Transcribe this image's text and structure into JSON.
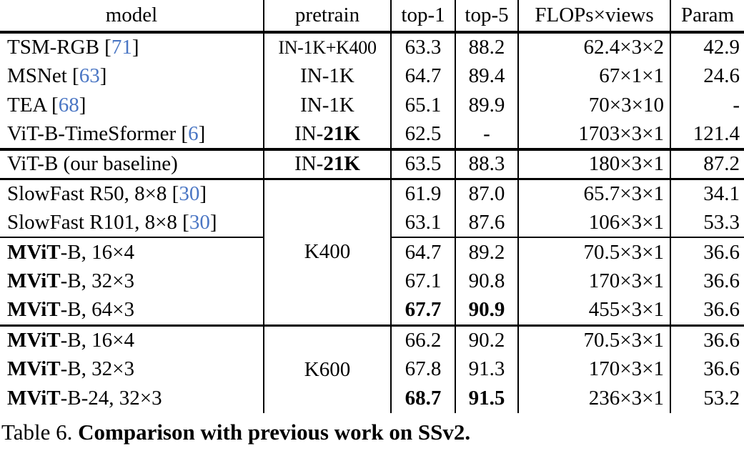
{
  "colors": {
    "ref_link": "#4a76c4",
    "text": "#000000",
    "background": "#ffffff"
  },
  "header": {
    "cells": [
      "model",
      "pretrain",
      "top-1",
      "top-5",
      "FLOPs×views",
      "Param"
    ]
  },
  "table_rows": [
    {
      "model": [
        {
          "t": "TSM-RGB ["
        },
        {
          "t": "71",
          "ref": true
        },
        {
          "t": "]"
        }
      ],
      "pretrain": {
        "rowspan": 1,
        "fit": true,
        "segs": [
          {
            "t": "IN-1K+K400"
          }
        ]
      },
      "top1": {
        "t": "63.3"
      },
      "top5": {
        "t": "88.2"
      },
      "flops": "62.4×3×2",
      "param": "42.9",
      "border": null
    },
    {
      "model": [
        {
          "t": "MSNet ["
        },
        {
          "t": "63",
          "ref": true
        },
        {
          "t": "]"
        }
      ],
      "pretrain": {
        "rowspan": 1,
        "segs": [
          {
            "t": "IN-1K"
          }
        ]
      },
      "top1": {
        "t": "64.7"
      },
      "top5": {
        "t": "89.4"
      },
      "flops": "67×1×1",
      "param": "24.6",
      "border": null
    },
    {
      "model": [
        {
          "t": "TEA ["
        },
        {
          "t": "68",
          "ref": true
        },
        {
          "t": "]"
        }
      ],
      "pretrain": {
        "rowspan": 1,
        "segs": [
          {
            "t": "IN-1K"
          }
        ]
      },
      "top1": {
        "t": "65.1"
      },
      "top5": {
        "t": "89.9"
      },
      "flops": "70×3×10",
      "param": "-",
      "border": null
    },
    {
      "model": [
        {
          "t": "ViT-B-TimeSformer ["
        },
        {
          "t": "6",
          "ref": true
        },
        {
          "t": "]"
        }
      ],
      "pretrain": {
        "rowspan": 1,
        "segs": [
          {
            "t": "IN-"
          },
          {
            "t": "21K",
            "b": true
          }
        ]
      },
      "top1": {
        "t": "62.5"
      },
      "top5": {
        "t": "-"
      },
      "flops": "1703×3×1",
      "param": "121.4",
      "border": null
    },
    {
      "model": [
        {
          "t": "ViT-B (our baseline)"
        }
      ],
      "pretrain": {
        "rowspan": 1,
        "segs": [
          {
            "t": "IN-"
          },
          {
            "t": "21K",
            "b": true
          }
        ]
      },
      "top1": {
        "t": "63.5"
      },
      "top5": {
        "t": "88.3"
      },
      "flops": "180×3×1",
      "param": "87.2",
      "border": "thick"
    },
    {
      "model": [
        {
          "t": "SlowFast R50, 8×8 ["
        },
        {
          "t": "30",
          "ref": true
        },
        {
          "t": "]"
        }
      ],
      "pretrain": {
        "rowspan": 5,
        "segs": [
          {
            "t": "K400"
          }
        ]
      },
      "top1": {
        "t": "61.9"
      },
      "top5": {
        "t": "87.0"
      },
      "flops": "65.7×3×1",
      "param": "34.1",
      "border": "medium"
    },
    {
      "model": [
        {
          "t": "SlowFast R101, 8×8 ["
        },
        {
          "t": "30",
          "ref": true
        },
        {
          "t": "]"
        }
      ],
      "pretrain": null,
      "top1": {
        "t": "63.1"
      },
      "top5": {
        "t": "87.6"
      },
      "flops": "106×3×1",
      "param": "53.3",
      "border": null
    },
    {
      "model": [
        {
          "t": "MViT",
          "b": true
        },
        {
          "t": "-B, 16×4"
        }
      ],
      "pretrain": null,
      "top1": {
        "t": "64.7"
      },
      "top5": {
        "t": "89.2"
      },
      "flops": "70.5×3×1",
      "param": "36.6",
      "border": "partial"
    },
    {
      "model": [
        {
          "t": "MViT",
          "b": true
        },
        {
          "t": "-B, 32×3"
        }
      ],
      "pretrain": null,
      "top1": {
        "t": "67.1"
      },
      "top5": {
        "t": "90.8"
      },
      "flops": "170×3×1",
      "param": "36.6",
      "border": null
    },
    {
      "model": [
        {
          "t": "MViT",
          "b": true
        },
        {
          "t": "-B, 64×3"
        }
      ],
      "pretrain": null,
      "top1": {
        "t": "67.7",
        "b": true
      },
      "top5": {
        "t": "90.9",
        "b": true
      },
      "flops": "455×3×1",
      "param": "36.6",
      "border": null
    },
    {
      "model": [
        {
          "t": "MViT",
          "b": true
        },
        {
          "t": "-B, 16×4"
        }
      ],
      "pretrain": {
        "rowspan": 3,
        "segs": [
          {
            "t": "K600"
          }
        ]
      },
      "top1": {
        "t": "66.2"
      },
      "top5": {
        "t": "90.2"
      },
      "flops": "70.5×3×1",
      "param": "36.6",
      "border": "medium"
    },
    {
      "model": [
        {
          "t": "MViT",
          "b": true
        },
        {
          "t": "-B, 32×3"
        }
      ],
      "pretrain": null,
      "top1": {
        "t": "67.8"
      },
      "top5": {
        "t": "91.3"
      },
      "flops": "170×3×1",
      "param": "36.6",
      "border": null
    },
    {
      "model": [
        {
          "t": "MViT",
          "b": true
        },
        {
          "t": "-B-24, 32×3"
        }
      ],
      "pretrain": null,
      "top1": {
        "t": "68.7",
        "b": true
      },
      "top5": {
        "t": "91.5",
        "b": true
      },
      "flops": "236×3×1",
      "param": "53.2",
      "border": null
    }
  ],
  "caption": {
    "label": "Table 6. ",
    "title": "Comparison with previous work on SSv2."
  }
}
